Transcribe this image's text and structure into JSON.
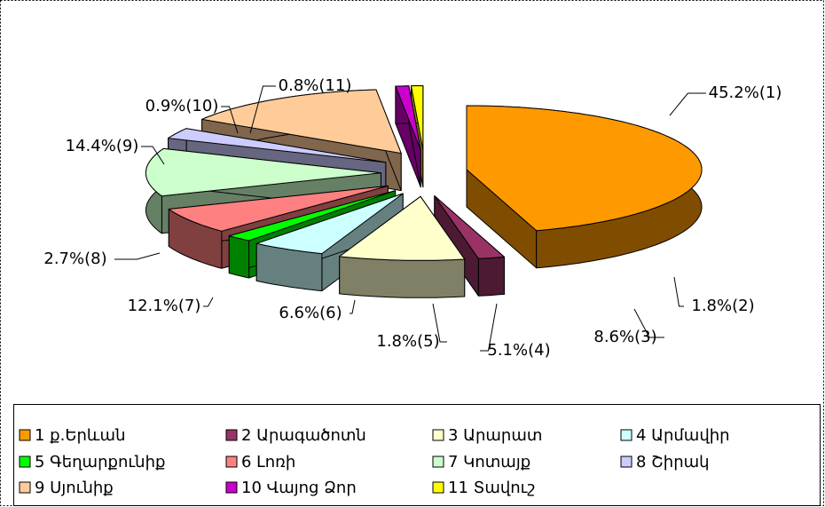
{
  "chart_data": {
    "type": "pie",
    "categories": [
      "1 ք.Երևան",
      "2 Արագածոտն",
      "3 Արարատ",
      "4 Արմավիր",
      "5 Գեղարքունիք",
      "6 Լոռի",
      "7 Կոտայք",
      "8 Շիրակ",
      "9 Սյունիք",
      "10 Վայոց Ձոր",
      "11 Տավուշ"
    ],
    "values": [
      45.2,
      1.8,
      8.6,
      5.1,
      1.8,
      6.6,
      12.1,
      2.7,
      14.4,
      0.9,
      0.8
    ],
    "value_labels": [
      "45.2%(1)",
      "1.8%(2)",
      "8.6%(3)",
      "5.1%(4)",
      "1.8%(5)",
      "6.6%(6)",
      "12.1%(7)",
      "2.7%(8)",
      "14.4%(9)",
      "0.9%(10)",
      "0.8%(11)"
    ],
    "colors": [
      "#ff9900",
      "#993366",
      "#ffffcc",
      "#ccffff",
      "#00ff00",
      "#ff8080",
      "#ccffcc",
      "#ccccff",
      "#ffcc99",
      "#cc00cc",
      "#ffff00"
    ],
    "legend": "bottom"
  }
}
